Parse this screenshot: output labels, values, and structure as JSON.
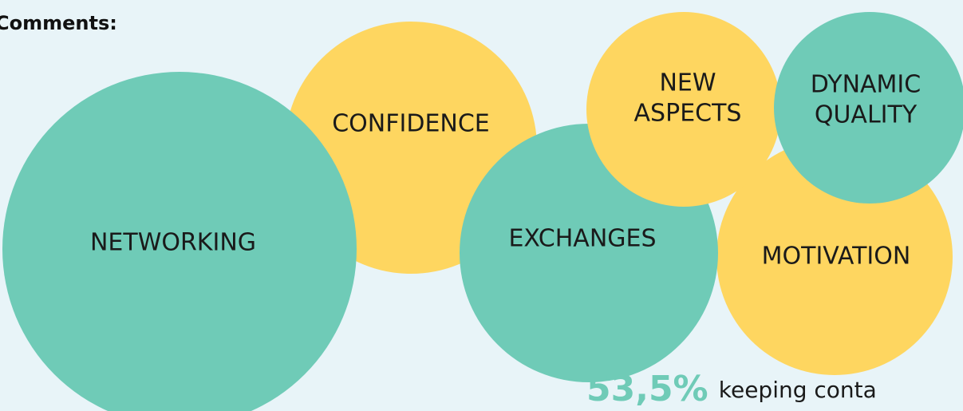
{
  "title": "Comments:",
  "bubbles": [
    {
      "lines": [
        "CONFIDENCE"
      ],
      "color": "#fed660"
    },
    {
      "lines": [
        "NETWORKING"
      ],
      "color": "#6fcbb7"
    },
    {
      "lines": [
        "MOTIVATION"
      ],
      "color": "#fed660"
    },
    {
      "lines": [
        "EXCHANGES"
      ],
      "color": "#6fcbb7"
    },
    {
      "lines": [
        "NEW",
        "ASPECTS"
      ],
      "color": "#fed660"
    },
    {
      "lines": [
        "DYNAMIC",
        "QUALITY"
      ],
      "color": "#6fcbb7"
    }
  ],
  "stat": {
    "value": "53,5%",
    "text": "keeping conta"
  }
}
